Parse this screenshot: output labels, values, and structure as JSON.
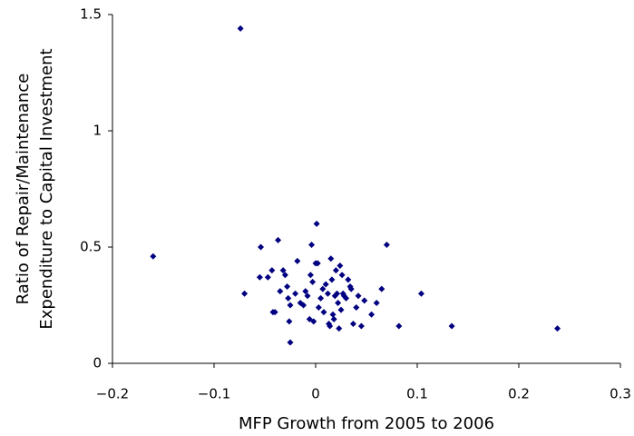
{
  "chart_data": {
    "type": "scatter",
    "xlabel": "MFP Growth from 2005 to 2006",
    "ylabel": [
      "Ratio of Repair/Maintenance",
      "Expenditure to Capital Investment"
    ],
    "series": [
      {
        "color": "#000080",
        "x": [
          -0.074,
          -0.16,
          0.001,
          -0.054,
          -0.037,
          -0.004,
          0.07,
          -0.07,
          0.104,
          0.082,
          0.134,
          0.238,
          -0.025,
          -0.055,
          -0.047,
          -0.043,
          -0.04,
          -0.042,
          -0.035,
          -0.032,
          -0.03,
          -0.028,
          -0.027,
          -0.026,
          -0.025,
          -0.02,
          -0.018,
          -0.015,
          -0.012,
          -0.01,
          -0.008,
          -0.006,
          -0.005,
          -0.003,
          -0.002,
          0.0,
          0.002,
          0.003,
          0.005,
          0.007,
          0.008,
          0.01,
          0.012,
          0.013,
          0.014,
          0.015,
          0.016,
          0.017,
          0.018,
          0.019,
          0.02,
          0.021,
          0.022,
          0.023,
          0.024,
          0.025,
          0.026,
          0.027,
          0.028,
          0.03,
          0.032,
          0.034,
          0.035,
          0.037,
          0.04,
          0.042,
          0.045,
          0.048,
          0.055,
          0.06,
          0.065
        ],
        "values": [
          1.44,
          0.46,
          0.6,
          0.5,
          0.53,
          0.51,
          0.51,
          0.3,
          0.3,
          0.16,
          0.16,
          0.15,
          0.09,
          0.37,
          0.37,
          0.4,
          0.22,
          0.22,
          0.31,
          0.4,
          0.38,
          0.33,
          0.28,
          0.18,
          0.25,
          0.3,
          0.44,
          0.26,
          0.25,
          0.31,
          0.29,
          0.19,
          0.38,
          0.35,
          0.18,
          0.43,
          0.43,
          0.24,
          0.28,
          0.32,
          0.22,
          0.34,
          0.3,
          0.17,
          0.16,
          0.45,
          0.36,
          0.21,
          0.19,
          0.29,
          0.4,
          0.3,
          0.26,
          0.15,
          0.42,
          0.23,
          0.38,
          0.3,
          0.29,
          0.28,
          0.36,
          0.33,
          0.32,
          0.17,
          0.24,
          0.29,
          0.16,
          0.27,
          0.21,
          0.26,
          0.32
        ]
      }
    ],
    "xlim": [
      -0.2,
      0.3
    ],
    "xticks": [
      {
        "value": -0.2,
        "label": "−0.2"
      },
      {
        "value": -0.1,
        "label": "−0.1"
      },
      0,
      0.1,
      0.2,
      0.3
    ],
    "ylim": [
      0,
      1.5
    ],
    "yticks": [
      0,
      0.5,
      1,
      1.5
    ]
  }
}
